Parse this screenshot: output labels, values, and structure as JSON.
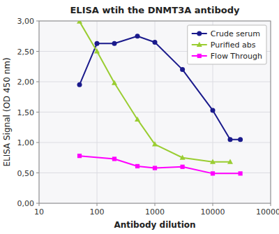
{
  "chart_data": {
    "type": "line",
    "title": "ELISA wtih the DNMT3A antibody",
    "x_label": "Antibody dilution",
    "y_label": "ELISA Signal (OD 450 nm)",
    "log": "x",
    "grid": true,
    "legend": "upper right",
    "xlim": [
      10,
      100000
    ],
    "ylim": [
      0.0,
      3.0
    ],
    "xticks": [
      10,
      100,
      1000,
      10000,
      100000
    ],
    "yticks": [
      {
        "value": 0.0,
        "label": "0,00"
      },
      {
        "value": 0.5,
        "label": "0,50"
      },
      {
        "value": 1.0,
        "label": "1,00"
      },
      {
        "value": 1.5,
        "label": "1,50"
      },
      {
        "value": 2.0,
        "label": "2,00"
      },
      {
        "value": 2.5,
        "label": "2,50"
      },
      {
        "value": 3.0,
        "label": "3,00"
      }
    ],
    "series": [
      {
        "name": "Crude serum",
        "color": "#1a1a8c",
        "marker": "circle",
        "x": [
          50,
          100,
          200,
          500,
          1000,
          3000,
          10000,
          20000,
          30000
        ],
        "values": [
          1.95,
          2.63,
          2.63,
          2.75,
          2.65,
          2.2,
          1.53,
          1.05,
          1.05
        ]
      },
      {
        "name": "Purified abs",
        "color": "#9ACD32",
        "marker": "triangle",
        "x": [
          50,
          100,
          200,
          500,
          1000,
          3000,
          10000,
          20000
        ],
        "values": [
          2.99,
          2.5,
          1.98,
          1.38,
          0.97,
          0.75,
          0.68,
          0.68
        ]
      },
      {
        "name": "Flow Through",
        "color": "#FF00FF",
        "marker": "square",
        "x": [
          50,
          200,
          500,
          1000,
          3000,
          10000,
          30000
        ],
        "values": [
          0.78,
          0.73,
          0.61,
          0.58,
          0.6,
          0.49,
          0.49
        ]
      }
    ]
  }
}
